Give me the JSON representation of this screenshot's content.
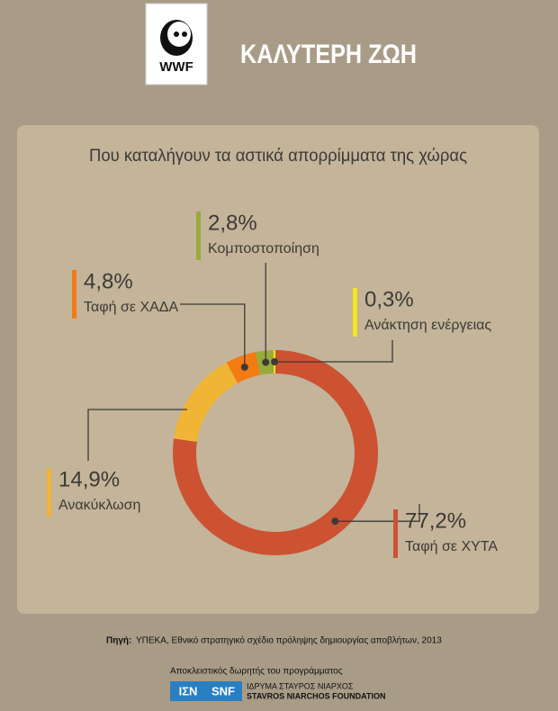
{
  "header": {
    "logo_text": "WWF",
    "title": "ΚΑΛΥΤΕΡΗ ΖΩΗ"
  },
  "chart_data": {
    "type": "donut",
    "title": "Που καταλήγουν τα αστικά απορρίμματα της χώρας",
    "categories": [
      "Ταφή σε ΧΥΤΑ",
      "Ανακύκλωση",
      "Ταφή σε ΧΑΔΑ",
      "Κομποστοποίηση",
      "Ανάκτηση ενέργειας"
    ],
    "values": [
      77.2,
      14.9,
      4.8,
      2.8,
      0.3
    ],
    "value_labels": [
      "77,2%",
      "14,9%",
      "4,8%",
      "2,8%",
      "0,3%"
    ],
    "colors": [
      "#cc5232",
      "#f0b535",
      "#f47a12",
      "#9aaa3a",
      "#f3e61c"
    ]
  },
  "source": {
    "label": "Πηγή:",
    "text": "ΥΠΕΚΑ, Εθνικό στρατηγικό σχέδιο πρόληψης δημιουργίας αποβλήτων, 2013"
  },
  "footer": {
    "caption": "Αποκλειστικός δωρητής του προγράμματος",
    "logo_left": "ΙΣΝ",
    "logo_right": "SNF",
    "org_greek": "ΙΔΡΥΜΑ ΣΤΑΥΡΟΣ ΝΙΑΡΧΟΣ",
    "org_english": "STAVROS NIARCHOS FOUNDATION"
  }
}
